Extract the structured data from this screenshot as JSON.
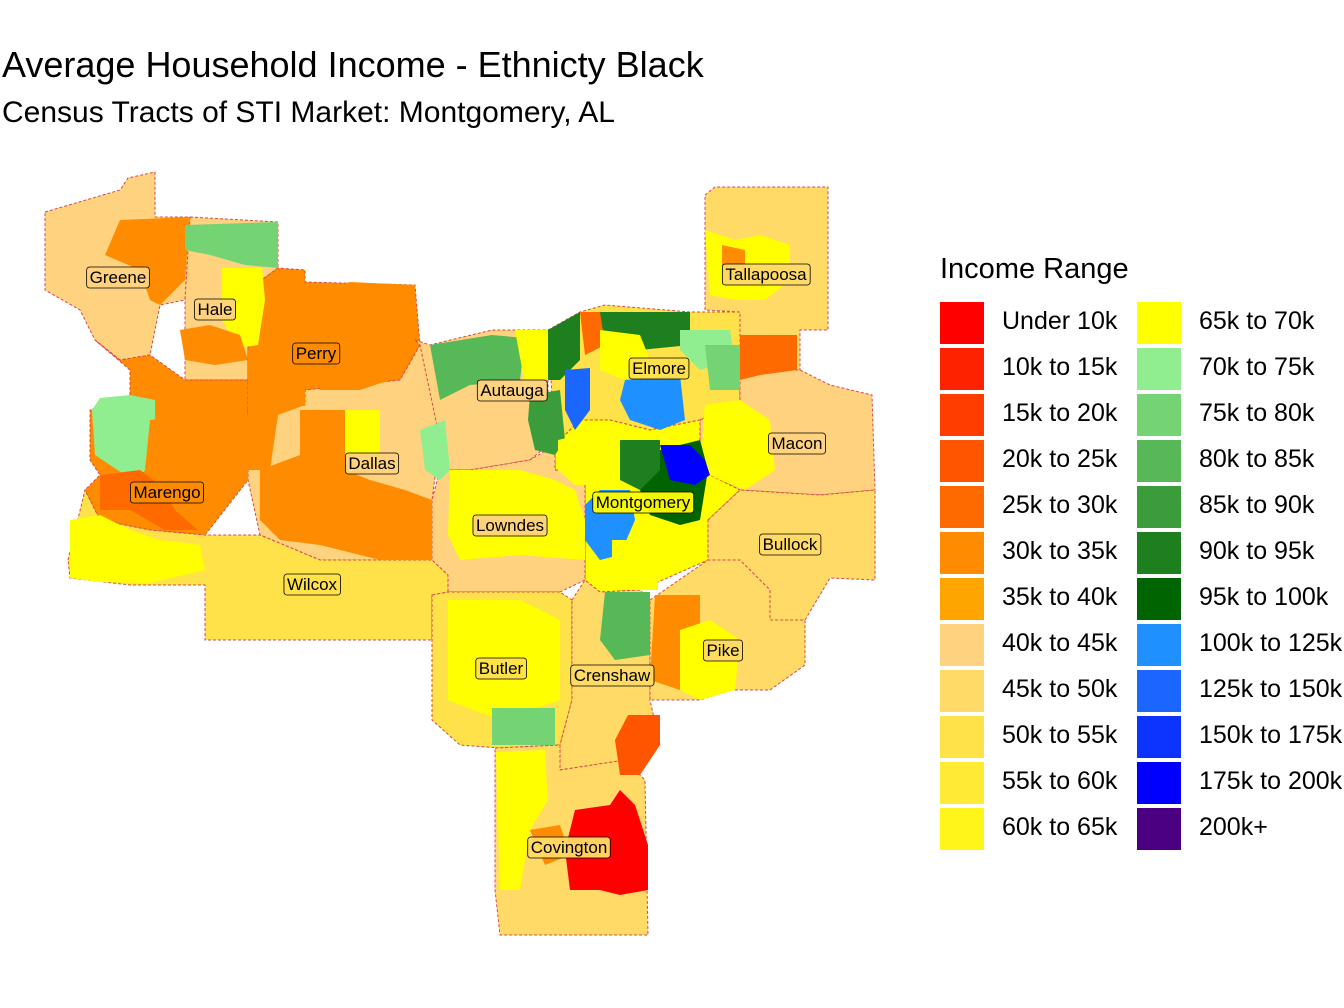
{
  "title": "Average Household Income - Ethnicty Black",
  "subtitle": "Census Tracts of STI Market: Montgomery, AL",
  "legend": {
    "title": "Income Range",
    "items": [
      {
        "label": "Under 10k",
        "color": "#FF0000"
      },
      {
        "label": "10k to 15k",
        "color": "#FF2200"
      },
      {
        "label": "15k to 20k",
        "color": "#FF3D00"
      },
      {
        "label": "20k to 25k",
        "color": "#FF5500"
      },
      {
        "label": "25k to 30k",
        "color": "#FF6A00"
      },
      {
        "label": "30k to 35k",
        "color": "#FF8C00"
      },
      {
        "label": "35k to 40k",
        "color": "#FFA500"
      },
      {
        "label": "40k to 45k",
        "color": "#FFD280"
      },
      {
        "label": "45k to 50k",
        "color": "#FFDA66"
      },
      {
        "label": "50k to 55k",
        "color": "#FFE24A"
      },
      {
        "label": "55k to 60k",
        "color": "#FFEB33"
      },
      {
        "label": "60k to 65k",
        "color": "#FFF51A"
      },
      {
        "label": "65k to 70k",
        "color": "#FFFF00"
      },
      {
        "label": "70k to 75k",
        "color": "#90EE90"
      },
      {
        "label": "75k to 80k",
        "color": "#74D474"
      },
      {
        "label": "80k to 85k",
        "color": "#57B857"
      },
      {
        "label": "85k to 90k",
        "color": "#3A9C3A"
      },
      {
        "label": "90k to 95k",
        "color": "#1E7F1E"
      },
      {
        "label": "95k to 100k",
        "color": "#006400"
      },
      {
        "label": "100k to 125k",
        "color": "#1E90FF"
      },
      {
        "label": "125k to 150k",
        "color": "#1A66FF"
      },
      {
        "label": "150k to 175k",
        "color": "#0D33FF"
      },
      {
        "label": "175k to 200k",
        "color": "#0000FF"
      },
      {
        "label": "200k+",
        "color": "#4B0082"
      }
    ]
  },
  "counties": [
    {
      "name": "Greene",
      "fill": "#FFD280"
    },
    {
      "name": "Hale",
      "fill": "#FFD280"
    },
    {
      "name": "Perry",
      "fill": "#FF8C00"
    },
    {
      "name": "Marengo",
      "fill": "#FF8C00"
    },
    {
      "name": "Dallas",
      "fill": "#FFD280"
    },
    {
      "name": "Wilcox",
      "fill": "#FFE24A"
    },
    {
      "name": "Autauga",
      "fill": "#FFD280"
    },
    {
      "name": "Elmore",
      "fill": "#FFE24A"
    },
    {
      "name": "Tallapoosa",
      "fill": "#FFDA66"
    },
    {
      "name": "Macon",
      "fill": "#FFD280"
    },
    {
      "name": "Montgomery",
      "fill": "#FFFF00"
    },
    {
      "name": "Lowndes",
      "fill": "#FFD280"
    },
    {
      "name": "Bullock",
      "fill": "#FFDA66"
    },
    {
      "name": "Butler",
      "fill": "#FFE24A"
    },
    {
      "name": "Crenshaw",
      "fill": "#FFDA66"
    },
    {
      "name": "Pike",
      "fill": "#FFDA66"
    },
    {
      "name": "Covington",
      "fill": "#FFDA66"
    }
  ]
}
